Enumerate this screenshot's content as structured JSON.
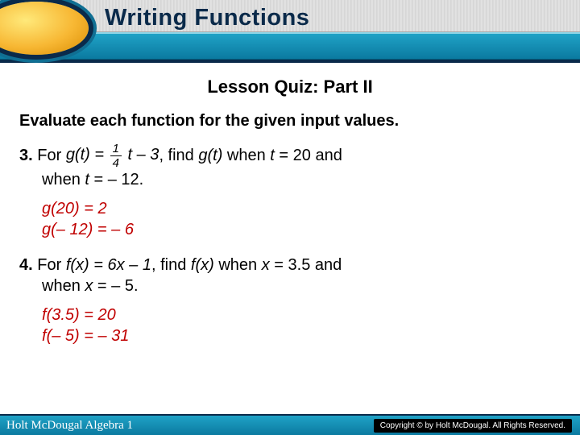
{
  "header": {
    "title": "Writing Functions",
    "title_color": "#0a2a4a",
    "title_fontsize": 29,
    "lozenge_gradient": [
      "#ffe97a",
      "#f7b733",
      "#d88a00"
    ],
    "lozenge_ring_outer": "#106f93",
    "lozenge_ring_inner": "#0a2a4a",
    "cyan_bar": [
      "#1fa2c6",
      "#0b7aa0"
    ],
    "navy_bar": "#0a2a4a",
    "brushed_bg": [
      "#d6d6d6",
      "#e6e6e6",
      "#d0d0d0"
    ]
  },
  "content": {
    "subtitle": "Lesson Quiz: Part II",
    "subtitle_fontsize": 22,
    "instruction": "Evaluate each function for the given input values.",
    "body_fontsize": 20,
    "answer_color": "#c00000",
    "problems": [
      {
        "num": "3.",
        "pre": " For ",
        "func_lhs": "g(t) = ",
        "frac_num": "1",
        "frac_den": "4",
        "func_rhs": " t – 3",
        "tail1": ", find ",
        "gt": "g(t)",
        "tail2": " when ",
        "tv": "t",
        "tail3": " = 20 and",
        "line2_pre": "when ",
        "line2_var": "t",
        "line2_rest": " = – 12.",
        "answers": [
          {
            "fn": "g",
            "arg": "(20) = 2"
          },
          {
            "fn": "g",
            "arg": "(– 12) = – 6"
          }
        ]
      },
      {
        "num": "4.",
        "pre": " For ",
        "func": "f(x) = 6x – 1",
        "tail1": ", find ",
        "fx": "f(x)",
        "tail2": " when ",
        "xv": "x",
        "tail3": " = 3.5 and",
        "line2_pre": "when ",
        "line2_var": "x",
        "line2_rest": " = – 5.",
        "answers": [
          {
            "fn": "f",
            "arg": "(3.5) = 20"
          },
          {
            "fn": "f",
            "arg": "(– 5) = – 31"
          }
        ]
      }
    ]
  },
  "footer": {
    "left": "Holt McDougal Algebra 1",
    "right": "Copyright © by Holt McDougal. All Rights Reserved.",
    "bg": [
      "#1fa2c6",
      "#0b7aa0"
    ],
    "border_top": "#0a2a4a"
  }
}
